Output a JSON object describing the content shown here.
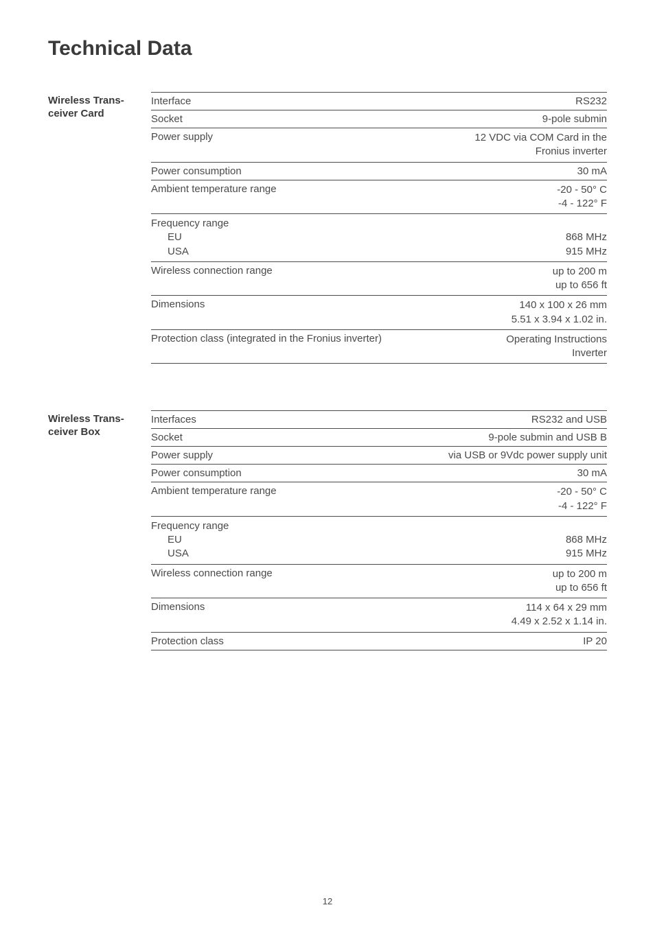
{
  "title": "Technical Data",
  "page_number": "12",
  "sections": [
    {
      "side_label_line1": "Wireless Trans-",
      "side_label_line2": "ceiver Card",
      "rows": [
        {
          "left": "Interface",
          "right": "RS232"
        },
        {
          "left": "Socket",
          "right": "9-pole submin"
        },
        {
          "left": "Power supply",
          "right_line1": "12 VDC via COM Card in the",
          "right_line2": "Fronius inverter"
        },
        {
          "left": "Power consumption",
          "right": "30 mA"
        },
        {
          "left": "Ambient temperature range",
          "right_line1": "-20 - 50° C",
          "right_line2": "-4 - 122° F"
        },
        {
          "left": "Frequency range",
          "sub1_left": "EU",
          "sub1_right": "868 MHz",
          "sub2_left": "USA",
          "sub2_right": "915 MHz"
        },
        {
          "left": "Wireless connection range",
          "right_line1": "up to 200 m",
          "right_line2": "up to 656 ft"
        },
        {
          "left": "Dimensions",
          "right_line1": "140 x 100 x 26 mm",
          "right_line2": "5.51 x 3.94 x 1.02 in."
        },
        {
          "left": "Protection class (integrated in the Fronius inverter)",
          "right_line1": "Operating Instructions",
          "right_line2": "Inverter"
        }
      ]
    },
    {
      "side_label_line1": "Wireless Trans-",
      "side_label_line2": "ceiver Box",
      "rows": [
        {
          "left": "Interfaces",
          "right": "RS232 and USB"
        },
        {
          "left": "Socket",
          "right": "9-pole submin and USB B"
        },
        {
          "left": "Power supply",
          "right": "via USB or 9Vdc power supply unit"
        },
        {
          "left": "Power consumption",
          "right": "30 mA"
        },
        {
          "left": "Ambient temperature range",
          "right_line1": "-20 - 50° C",
          "right_line2": "-4 - 122° F"
        },
        {
          "left": "Frequency range",
          "sub1_left": "EU",
          "sub1_right": "868 MHz",
          "sub2_left": "USA",
          "sub2_right": "915 MHz"
        },
        {
          "left": "Wireless connection range",
          "right_line1": "up to 200 m",
          "right_line2": "up to 656 ft"
        },
        {
          "left": "Dimensions",
          "right_line1": "114 x 64 x 29 mm",
          "right_line2": "4.49 x 2.52 x 1.14 in."
        },
        {
          "left": "Protection class",
          "right": "IP 20"
        }
      ]
    }
  ]
}
